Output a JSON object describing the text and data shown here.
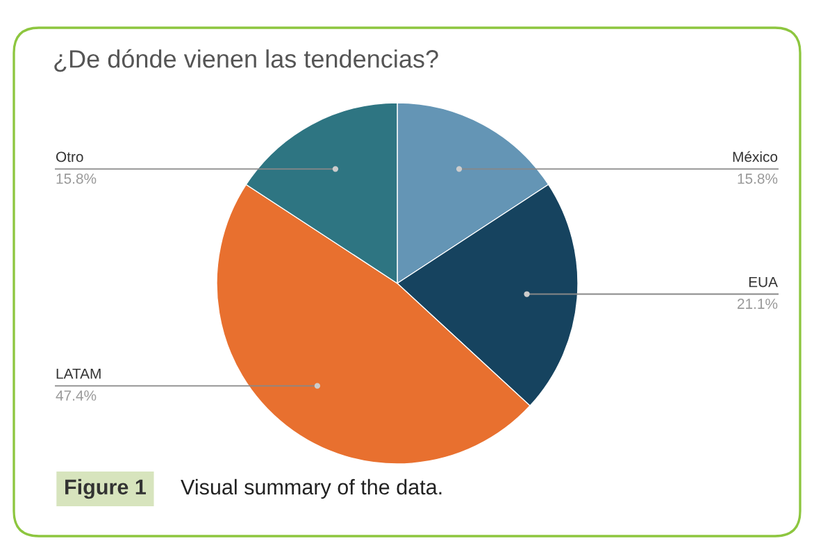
{
  "chart_data": {
    "type": "pie",
    "title": "¿De dónde vienen las tendencias?",
    "categories": [
      "México",
      "EUA",
      "LATAM",
      "Otro"
    ],
    "values": [
      15.8,
      21.1,
      47.4,
      15.8
    ],
    "colors": [
      "#6495b5",
      "#16435f",
      "#e8702f",
      "#2e7582"
    ],
    "value_labels": [
      "15.8%",
      "21.1%",
      "47.4%",
      "15.8%"
    ],
    "legend": false,
    "annotations": [
      "Figure 1",
      "Visual summary of the data."
    ]
  }
}
